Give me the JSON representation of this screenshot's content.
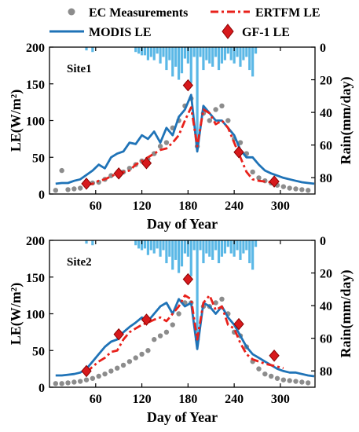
{
  "colors": {
    "ec": "#8c8c8c",
    "ertfm": "#e8211b",
    "modis": "#1f73b7",
    "gf1": "#d7191c",
    "rain": "#5bb8e6"
  },
  "legend": [
    {
      "key": "ec",
      "label": "EC Measurements",
      "marker": "gray-dot"
    },
    {
      "key": "ertfm",
      "label": "ERTFM LE",
      "marker": "red-dashdot-line"
    },
    {
      "key": "modis",
      "label": "MODIS LE",
      "marker": "blue-solid-line"
    },
    {
      "key": "gf1",
      "label": "GF-1 LE",
      "marker": "red-diamond"
    }
  ],
  "chart_data": [
    {
      "type": "line",
      "annotation": "Site1",
      "xlabel": "Day of Year",
      "ylabel": "LE(W/m²)",
      "y2label": "Rain(mm/day)",
      "xlim": [
        0,
        345
      ],
      "xticks": [
        60,
        120,
        180,
        240,
        300
      ],
      "ylim": [
        0,
        200
      ],
      "yticks": [
        0,
        50,
        100,
        150,
        200
      ],
      "y2lim": [
        90,
        0
      ],
      "y2ticks": [
        0,
        20,
        40,
        60,
        80
      ],
      "series": [
        {
          "name": "EC Measurements",
          "key": "ec",
          "style": "scatter",
          "x": [
            8,
            16,
            24,
            32,
            40,
            48,
            56,
            64,
            72,
            80,
            88,
            96,
            104,
            112,
            120,
            128,
            136,
            144,
            152,
            160,
            168,
            176,
            184,
            192,
            200,
            208,
            216,
            224,
            232,
            240,
            248,
            256,
            264,
            272,
            280,
            288,
            296,
            304,
            312,
            320,
            328,
            336
          ],
          "y": [
            5,
            32,
            6,
            7,
            8,
            12,
            15,
            16,
            20,
            25,
            28,
            30,
            35,
            40,
            45,
            48,
            55,
            65,
            70,
            90,
            100,
            120,
            130,
            65,
            110,
            100,
            115,
            120,
            100,
            75,
            70,
            55,
            30,
            22,
            18,
            15,
            12,
            10,
            8,
            7,
            6,
            5
          ]
        },
        {
          "name": "ERTFM LE",
          "key": "ertfm",
          "style": "dashdot",
          "x": [
            48,
            56,
            64,
            72,
            80,
            88,
            96,
            104,
            112,
            120,
            128,
            136,
            144,
            152,
            160,
            168,
            176,
            184,
            192,
            200,
            208,
            216,
            224,
            232,
            240,
            248,
            256,
            264,
            272,
            280,
            288,
            296
          ],
          "y": [
            12,
            14,
            18,
            20,
            24,
            28,
            30,
            32,
            40,
            45,
            50,
            55,
            60,
            62,
            70,
            80,
            100,
            118,
            65,
            115,
            110,
            95,
            100,
            90,
            70,
            50,
            30,
            20,
            18,
            17,
            16,
            15
          ]
        },
        {
          "name": "MODIS LE",
          "key": "modis",
          "style": "solid",
          "x": [
            8,
            16,
            24,
            32,
            40,
            48,
            56,
            64,
            72,
            80,
            88,
            96,
            104,
            112,
            120,
            128,
            136,
            144,
            152,
            160,
            168,
            176,
            184,
            192,
            200,
            208,
            216,
            224,
            232,
            240,
            248,
            256,
            264,
            272,
            280,
            288,
            296,
            304,
            312,
            320,
            328,
            336,
            344
          ],
          "y": [
            14,
            15,
            15,
            18,
            20,
            26,
            32,
            40,
            35,
            50,
            55,
            58,
            70,
            68,
            80,
            75,
            85,
            70,
            90,
            80,
            105,
            115,
            135,
            58,
            120,
            110,
            100,
            100,
            90,
            80,
            60,
            50,
            50,
            40,
            32,
            28,
            25,
            22,
            20,
            18,
            16,
            15,
            14
          ]
        },
        {
          "name": "GF-1 LE",
          "key": "gf1",
          "style": "diamond",
          "x": [
            48,
            90,
            126,
            180,
            246,
            292
          ],
          "y": [
            14,
            28,
            42,
            148,
            57,
            17
          ]
        }
      ],
      "rain": {
        "x": [
          48,
          56,
          112,
          116,
          120,
          124,
          128,
          132,
          136,
          140,
          144,
          148,
          152,
          156,
          160,
          164,
          168,
          172,
          176,
          180,
          184,
          188,
          192,
          196,
          200,
          204,
          208,
          212,
          216,
          220,
          224,
          228,
          232,
          236,
          240,
          244,
          248,
          252,
          256,
          260,
          264,
          268
        ],
        "y": [
          2,
          3,
          3,
          4,
          5,
          5,
          8,
          6,
          8,
          4,
          10,
          6,
          14,
          8,
          18,
          12,
          20,
          16,
          7,
          10,
          22,
          6,
          60,
          6,
          14,
          8,
          10,
          12,
          6,
          14,
          10,
          8,
          4,
          8,
          10,
          6,
          12,
          8,
          6,
          14,
          18,
          4
        ]
      }
    },
    {
      "type": "line",
      "annotation": "Site2",
      "xlabel": "Day of Year",
      "ylabel": "LE(W/m²)",
      "y2label": "Rain(mm/day)",
      "xlim": [
        0,
        345
      ],
      "xticks": [
        60,
        120,
        180,
        240,
        300
      ],
      "ylim": [
        0,
        200
      ],
      "yticks": [
        0,
        50,
        100,
        150,
        200
      ],
      "y2lim": [
        90,
        0
      ],
      "y2ticks": [
        0,
        20,
        40,
        60,
        80
      ],
      "series": [
        {
          "name": "EC Measurements",
          "key": "ec",
          "style": "scatter",
          "x": [
            8,
            16,
            24,
            32,
            40,
            48,
            56,
            64,
            72,
            80,
            88,
            96,
            104,
            112,
            120,
            128,
            136,
            144,
            152,
            160,
            168,
            176,
            184,
            192,
            200,
            208,
            216,
            224,
            232,
            240,
            248,
            256,
            264,
            272,
            280,
            288,
            296,
            304,
            312,
            320,
            328,
            336
          ],
          "y": [
            5,
            5,
            6,
            7,
            8,
            10,
            12,
            15,
            18,
            22,
            26,
            30,
            35,
            40,
            45,
            50,
            65,
            70,
            75,
            85,
            100,
            115,
            115,
            65,
            110,
            110,
            115,
            120,
            100,
            75,
            70,
            55,
            35,
            25,
            18,
            15,
            12,
            10,
            9,
            8,
            7,
            6
          ]
        },
        {
          "name": "ERTFM LE",
          "key": "ertfm",
          "style": "dashdot",
          "x": [
            48,
            56,
            64,
            72,
            80,
            88,
            96,
            104,
            112,
            120,
            128,
            136,
            144,
            152,
            160,
            168,
            176,
            184,
            192,
            200,
            208,
            216,
            224,
            232,
            240,
            248,
            256,
            264,
            272,
            280,
            288,
            296,
            304
          ],
          "y": [
            20,
            28,
            35,
            40,
            48,
            50,
            65,
            75,
            80,
            85,
            88,
            92,
            95,
            90,
            100,
            110,
            125,
            120,
            65,
            115,
            125,
            105,
            110,
            85,
            80,
            60,
            45,
            38,
            35,
            32,
            30,
            28,
            26
          ]
        },
        {
          "name": "MODIS LE",
          "key": "modis",
          "style": "solid",
          "x": [
            8,
            16,
            24,
            32,
            40,
            48,
            56,
            64,
            72,
            80,
            88,
            96,
            104,
            112,
            120,
            128,
            136,
            144,
            152,
            160,
            168,
            176,
            184,
            192,
            200,
            208,
            216,
            224,
            232,
            240,
            248,
            256,
            264,
            272,
            280,
            288,
            296,
            304,
            312,
            320,
            328,
            336,
            344
          ],
          "y": [
            16,
            16,
            17,
            18,
            20,
            25,
            35,
            45,
            55,
            62,
            65,
            75,
            82,
            88,
            95,
            90,
            100,
            110,
            115,
            100,
            120,
            110,
            115,
            52,
            115,
            110,
            100,
            110,
            95,
            85,
            70,
            55,
            45,
            40,
            35,
            30,
            25,
            22,
            20,
            20,
            18,
            16,
            15
          ]
        },
        {
          "name": "GF-1 LE",
          "key": "gf1",
          "style": "diamond",
          "x": [
            48,
            90,
            126,
            180,
            246,
            292
          ],
          "y": [
            22,
            72,
            92,
            147,
            86,
            43
          ]
        }
      ],
      "rain": {
        "x": [
          48,
          56,
          112,
          116,
          120,
          124,
          128,
          132,
          136,
          140,
          144,
          148,
          152,
          156,
          160,
          164,
          168,
          172,
          176,
          180,
          184,
          188,
          192,
          196,
          200,
          204,
          208,
          212,
          216,
          220,
          224,
          228,
          232,
          236,
          240,
          244,
          248,
          252,
          256,
          260,
          264,
          268
        ],
        "y": [
          2,
          3,
          3,
          5,
          6,
          5,
          9,
          6,
          8,
          5,
          10,
          6,
          14,
          10,
          18,
          12,
          20,
          16,
          8,
          10,
          22,
          6,
          60,
          6,
          14,
          8,
          10,
          12,
          6,
          14,
          10,
          8,
          4,
          8,
          10,
          6,
          12,
          8,
          6,
          14,
          18,
          4
        ]
      }
    }
  ]
}
